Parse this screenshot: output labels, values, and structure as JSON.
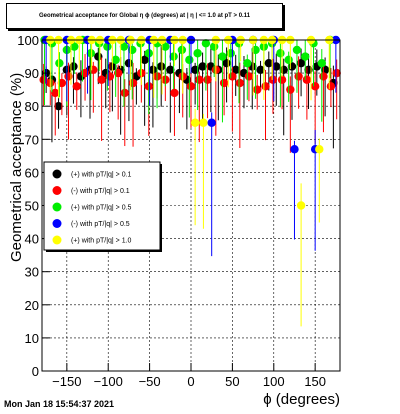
{
  "chart_data": {
    "type": "scatter",
    "title": "Geometrical acceptance for Global η ϕ (degrees) at | η | <= 1.0 at pT > 0.11",
    "xlabel": "ϕ (degrees)",
    "ylabel": "Geometrical acceptance (%)",
    "xlim": [
      -180,
      180
    ],
    "ylim": [
      0,
      100
    ],
    "x_ticks": [
      -150,
      -100,
      -50,
      0,
      50,
      100,
      150
    ],
    "y_ticks": [
      0,
      10,
      20,
      30,
      40,
      50,
      60,
      70,
      80,
      90,
      100
    ],
    "grid": true,
    "legend_position": "middle-left",
    "error_bars": true,
    "series": [
      {
        "name": "(+) with pT/|q| > 0.1",
        "color": "#000000",
        "x": [
          -175,
          -168,
          -160,
          -150,
          -142,
          -133,
          -122,
          -112,
          -103,
          -95,
          -85,
          -75,
          -66,
          -56,
          -46,
          -36,
          -25,
          -14,
          -5,
          5,
          14,
          24,
          33,
          43,
          54,
          64,
          74,
          84,
          94,
          103,
          112,
          122,
          133,
          142,
          152,
          162,
          172
        ],
        "y": [
          90,
          88,
          80,
          91,
          92,
          89,
          91,
          95,
          90,
          92,
          91,
          93,
          89,
          94,
          91,
          92,
          91,
          90,
          88,
          91,
          92,
          92,
          91,
          93,
          91,
          90,
          92,
          91,
          93,
          92,
          91,
          92,
          93,
          91,
          92,
          91,
          87
        ]
      },
      {
        "name": "(-) with pT/|q| > 0.1",
        "color": "#ff0000",
        "x": [
          -178,
          -170,
          -164,
          -156,
          -148,
          -138,
          -128,
          -118,
          -108,
          -98,
          -88,
          -80,
          -70,
          -60,
          -51,
          -41,
          -31,
          -20,
          -10,
          0,
          10,
          20,
          30,
          40,
          50,
          59,
          70,
          80,
          90,
          99,
          110,
          120,
          130,
          140,
          150,
          160,
          169,
          176
        ],
        "y": [
          88,
          87,
          84,
          87,
          89,
          86,
          90,
          91,
          88,
          89,
          90,
          84,
          87,
          90,
          86,
          89,
          88,
          84,
          89,
          86,
          88,
          88,
          91,
          87,
          89,
          87,
          89,
          85,
          86,
          88,
          88,
          85,
          89,
          88,
          86,
          89,
          86,
          90
        ]
      },
      {
        "name": "(+) with pT/|q| > 0.5",
        "color": "#00ee00",
        "x": [
          -177,
          -168,
          -159,
          -150,
          -141,
          -131,
          -121,
          -111,
          -101,
          -91,
          -81,
          -71,
          -61,
          -51,
          -41,
          -31,
          -21,
          -11,
          -2,
          8,
          18,
          28,
          38,
          48,
          58,
          68,
          78,
          88,
          98,
          108,
          118,
          128,
          138,
          148,
          158,
          168
        ],
        "y": [
          100,
          99,
          93,
          97,
          98,
          100,
          96,
          99,
          98,
          94,
          98,
          97,
          99,
          96,
          99,
          98,
          95,
          97,
          94,
          96,
          99,
          98,
          95,
          96,
          99,
          93,
          97,
          98,
          99,
          96,
          94,
          97,
          95,
          99,
          93,
          100
        ]
      },
      {
        "name": "(-) with pT/|q| > 0.5",
        "color": "#0000ff",
        "x": [
          -175,
          -150,
          -125,
          -100,
          -75,
          -50,
          -25,
          0,
          25,
          50,
          75,
          100,
          125,
          150,
          175
        ],
        "y": [
          100,
          100,
          100,
          100,
          100,
          100,
          100,
          100,
          75,
          100,
          100,
          100,
          67,
          67,
          100
        ]
      },
      {
        "name": "(+) with pT/|q| > 1.0",
        "color": "#ffff00",
        "x": [
          -170,
          -160,
          -145,
          -135,
          -120,
          -110,
          -95,
          -85,
          -73,
          -60,
          -45,
          -35,
          -20,
          -10,
          5,
          15,
          30,
          45,
          60,
          75,
          88,
          98,
          110,
          120,
          133,
          145,
          155,
          167
        ],
        "y": [
          100,
          100,
          100,
          100,
          100,
          100,
          100,
          100,
          100,
          100,
          100,
          100,
          100,
          100,
          75,
          75,
          100,
          100,
          100,
          100,
          100,
          100,
          100,
          100,
          50,
          100,
          67,
          100
        ]
      }
    ]
  },
  "timestamp": "Mon Jan 18 15:54:37 2021"
}
